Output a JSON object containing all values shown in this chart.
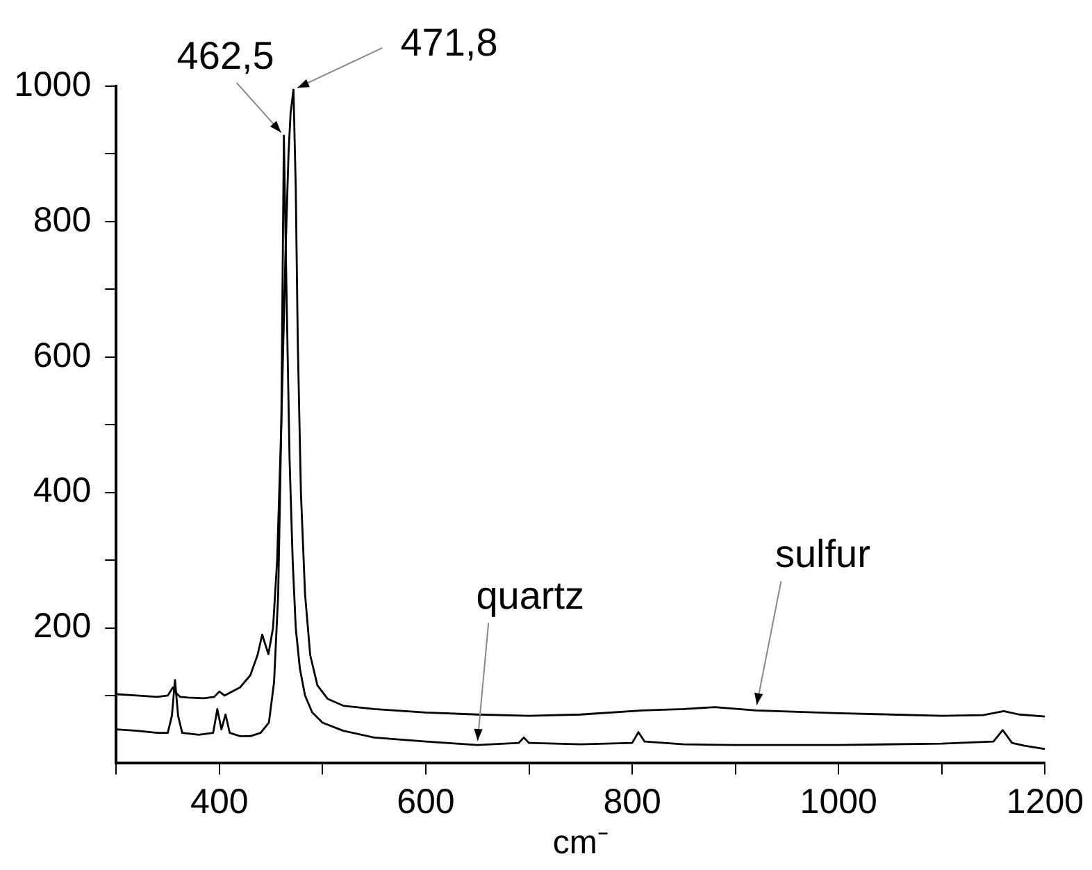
{
  "chart_data": {
    "type": "line",
    "xlabel": "cm⁻",
    "xlim": [
      300,
      1200
    ],
    "xticks": [
      {
        "value": 300,
        "label": null
      },
      400,
      {
        "value": 500,
        "label": null
      },
      600,
      {
        "value": 700,
        "label": null
      },
      800,
      {
        "value": 900,
        "label": null
      },
      1000,
      {
        "value": 1100,
        "label": null
      },
      1200
    ],
    "ylim": [
      0,
      1000
    ],
    "yticks": [
      {
        "value": 100,
        "label": null
      },
      200,
      {
        "value": 300,
        "label": null
      },
      400,
      {
        "value": 500,
        "label": null
      },
      600,
      {
        "value": 700,
        "label": null
      },
      800,
      {
        "value": 900,
        "label": null
      },
      1000
    ],
    "grid": false,
    "legend": false,
    "marker": "none",
    "line_style": "solid",
    "series": [
      {
        "color": "#000000",
        "x": [
          300,
          320,
          340,
          350,
          355,
          358,
          362,
          370,
          385,
          395,
          400,
          405,
          410,
          420,
          430,
          437,
          441.5,
          447.5,
          452,
          456,
          460,
          464,
          467,
          469,
          471.8,
          474,
          476,
          479,
          483,
          488,
          495,
          505,
          520,
          550,
          600,
          650,
          700,
          750,
          810,
          850,
          880,
          920,
          960,
          1000,
          1050,
          1100,
          1140,
          1160,
          1175,
          1200
        ],
        "values": [
          102,
          100,
          98,
          100,
          112,
          104,
          98,
          97,
          96,
          98,
          106,
          100,
          104,
          112,
          130,
          160,
          190,
          161,
          200,
          300,
          500,
          750,
          900,
          960,
          995,
          850,
          620,
          400,
          250,
          160,
          115,
          95,
          85,
          80,
          75,
          72,
          70,
          72,
          78,
          80,
          83,
          78,
          76,
          74,
          72,
          70,
          71,
          77,
          72,
          69
        ]
      },
      {
        "color": "#000000",
        "x": [
          300,
          320,
          340,
          350,
          354,
          357,
          360,
          364,
          380,
          394,
          398,
          402,
          406,
          410,
          420,
          430,
          440,
          448,
          453,
          457,
          460,
          462.5,
          465,
          468,
          471,
          474,
          478,
          483,
          490,
          500,
          520,
          550,
          600,
          650,
          690,
          695,
          700,
          750,
          800,
          806,
          812,
          850,
          900,
          1000,
          1100,
          1150,
          1159,
          1168,
          1180,
          1200
        ],
        "values": [
          50,
          48,
          45,
          45,
          70,
          123,
          70,
          45,
          42,
          45,
          80,
          50,
          72,
          45,
          40,
          40,
          45,
          60,
          120,
          250,
          500,
          927,
          700,
          450,
          300,
          200,
          140,
          100,
          75,
          60,
          48,
          38,
          32,
          27,
          30,
          38,
          30,
          28,
          30,
          46,
          32,
          28,
          27,
          27,
          29,
          32,
          49,
          30,
          26,
          21
        ]
      }
    ],
    "annotations": [
      {
        "text": "462,5",
        "x": 462.5,
        "y": 927
      },
      {
        "text": "471,8",
        "x": 471.8,
        "y": 995
      },
      {
        "text": "quartz",
        "x": 650,
        "y": 27
      },
      {
        "text": "sulfur",
        "x": 920,
        "y": 80
      }
    ]
  }
}
